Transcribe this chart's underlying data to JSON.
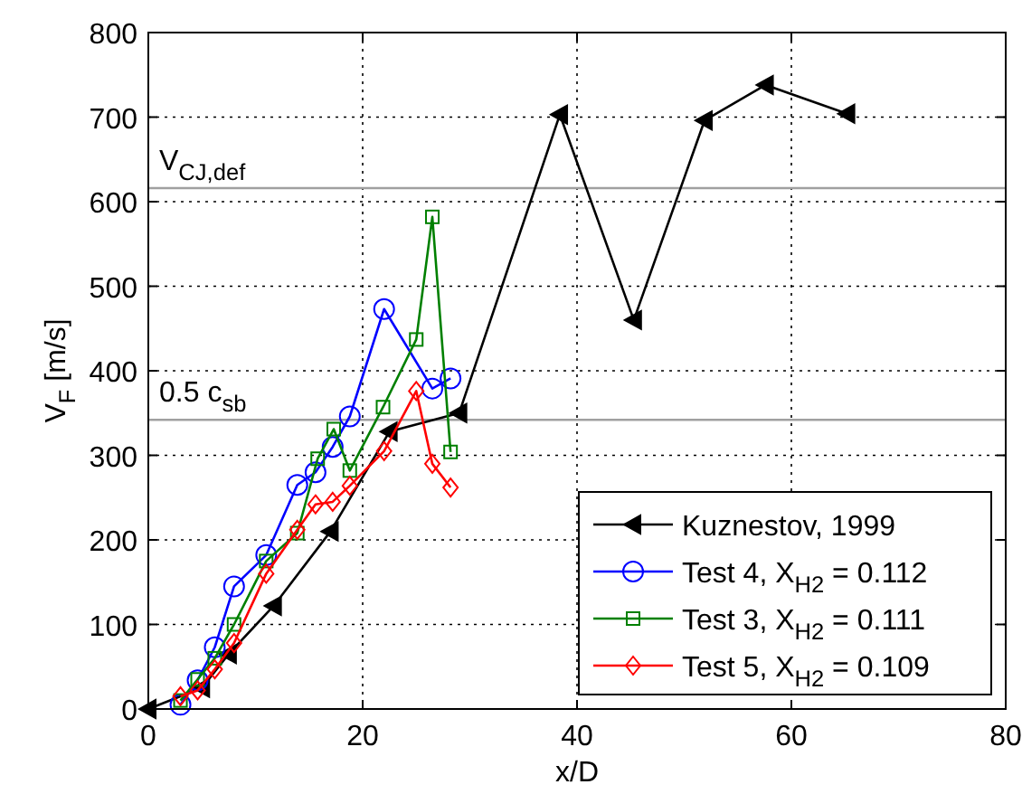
{
  "chart_data": {
    "type": "line",
    "xlabel": "x/D",
    "ylabel": "V$_{F}$ [m/s]",
    "xlim": [
      0,
      80
    ],
    "ylim": [
      0,
      800
    ],
    "xticks": [
      0,
      20,
      40,
      60,
      80
    ],
    "yticks": [
      0,
      100,
      200,
      300,
      400,
      500,
      600,
      700,
      800
    ],
    "grid": true,
    "legend": "bottom right",
    "line_style": "solid",
    "series": [
      {
        "name": "Kuznestov, 1999",
        "color": "#000000",
        "marker": "triangle",
        "x": [
          0,
          5,
          7.5,
          11.7,
          17,
          22.5,
          29,
          38.4,
          45.3,
          51.9,
          57.6,
          65.2
        ],
        "values": [
          0,
          25,
          65,
          122,
          210,
          328,
          350,
          703,
          460,
          696,
          738,
          704
        ]
      },
      {
        "name": "Test 4, X$_{H2}$ = 0.112",
        "color": "#0000ff",
        "marker": "circle",
        "x": [
          3,
          4.6,
          6.2,
          8,
          11,
          13.9,
          15.6,
          17.2,
          18.8,
          22,
          26.5,
          28.2
        ],
        "values": [
          5,
          34,
          73,
          145,
          182,
          265,
          280,
          310,
          346,
          473,
          379,
          391
        ]
      },
      {
        "name": "Test 3, X$_{H2}$ = 0.111",
        "color": "#008000",
        "marker": "square",
        "x": [
          3,
          4.6,
          6.2,
          8,
          11,
          13.9,
          15.8,
          17.3,
          18.8,
          21.9,
          25,
          26.5,
          28.2
        ],
        "values": [
          10,
          35,
          60,
          100,
          175,
          208,
          296,
          331,
          282,
          357,
          437,
          582,
          304
        ]
      },
      {
        "name": "Test 5, X$_{H2}$ = 0.109",
        "color": "#ff0000",
        "marker": "diamond",
        "x": [
          3,
          4.6,
          6.2,
          8,
          11,
          13.9,
          15.6,
          17.2,
          18.8,
          22,
          25,
          26.5,
          28.2
        ],
        "values": [
          15,
          22,
          47,
          78,
          160,
          212,
          242,
          245,
          264,
          305,
          376,
          290,
          262
        ]
      }
    ],
    "ref_lines": [
      {
        "axis": "y",
        "value": 616,
        "label": "V$_{CJ,def}$",
        "color": "#a0a0a0"
      },
      {
        "axis": "y",
        "value": 342,
        "label": "0.5 c$_{sb}$",
        "color": "#a0a0a0"
      }
    ]
  }
}
